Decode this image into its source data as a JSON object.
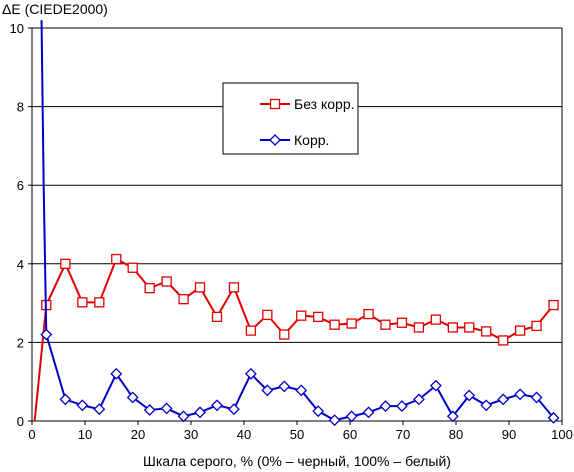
{
  "chart_data": {
    "type": "line",
    "title": "",
    "xlabel": "Шкала серого, % (0% – черный, 100% – белый)",
    "ylabel": "ΔE (CIEDE2000)",
    "xlim": [
      0,
      100
    ],
    "ylim": [
      0,
      10
    ],
    "xticks": [
      0,
      10,
      20,
      30,
      40,
      50,
      60,
      70,
      80,
      90,
      100
    ],
    "yticks": [
      0,
      2,
      4,
      6,
      8,
      10
    ],
    "grid": "horizontal",
    "legend_position": "top-center",
    "series": [
      {
        "name": "Без корр.",
        "color": "#e00000",
        "marker": "square",
        "points": [
          [
            0.5,
            0
          ],
          [
            2.7,
            2.95
          ],
          [
            6.3,
            4.0
          ],
          [
            9.5,
            3.02
          ],
          [
            12.7,
            3.02
          ],
          [
            15.9,
            4.12
          ],
          [
            19.0,
            3.9
          ],
          [
            22.2,
            3.38
          ],
          [
            25.4,
            3.55
          ],
          [
            28.6,
            3.1
          ],
          [
            31.7,
            3.4
          ],
          [
            34.9,
            2.65
          ],
          [
            38.1,
            3.4
          ],
          [
            41.3,
            2.3
          ],
          [
            44.4,
            2.7
          ],
          [
            47.6,
            2.2
          ],
          [
            50.8,
            2.68
          ],
          [
            54.0,
            2.65
          ],
          [
            57.1,
            2.45
          ],
          [
            60.3,
            2.48
          ],
          [
            63.5,
            2.72
          ],
          [
            66.7,
            2.45
          ],
          [
            69.8,
            2.5
          ],
          [
            73.0,
            2.38
          ],
          [
            76.2,
            2.58
          ],
          [
            79.4,
            2.38
          ],
          [
            82.5,
            2.38
          ],
          [
            85.7,
            2.28
          ],
          [
            88.9,
            2.05
          ],
          [
            92.1,
            2.3
          ],
          [
            95.2,
            2.42
          ],
          [
            98.4,
            2.95
          ]
        ]
      },
      {
        "name": "Корр.",
        "color": "#0000cc",
        "marker": "diamond",
        "points": [
          [
            1.8,
            10.2
          ],
          [
            2.2,
            6.0
          ],
          [
            2.7,
            2.2
          ],
          [
            6.3,
            0.55
          ],
          [
            9.5,
            0.4
          ],
          [
            12.7,
            0.3
          ],
          [
            15.9,
            1.2
          ],
          [
            19.0,
            0.6
          ],
          [
            22.2,
            0.28
          ],
          [
            25.4,
            0.32
          ],
          [
            28.6,
            0.12
          ],
          [
            31.7,
            0.22
          ],
          [
            34.9,
            0.4
          ],
          [
            38.1,
            0.3
          ],
          [
            41.3,
            1.2
          ],
          [
            44.4,
            0.78
          ],
          [
            47.6,
            0.88
          ],
          [
            50.8,
            0.78
          ],
          [
            54.0,
            0.25
          ],
          [
            57.1,
            0.02
          ],
          [
            60.3,
            0.12
          ],
          [
            63.5,
            0.22
          ],
          [
            66.7,
            0.38
          ],
          [
            69.8,
            0.38
          ],
          [
            73.0,
            0.55
          ],
          [
            76.2,
            0.9
          ],
          [
            79.4,
            0.12
          ],
          [
            82.5,
            0.65
          ],
          [
            85.7,
            0.4
          ],
          [
            88.9,
            0.55
          ],
          [
            92.1,
            0.68
          ],
          [
            95.2,
            0.6
          ],
          [
            98.4,
            0.08
          ]
        ]
      }
    ]
  }
}
